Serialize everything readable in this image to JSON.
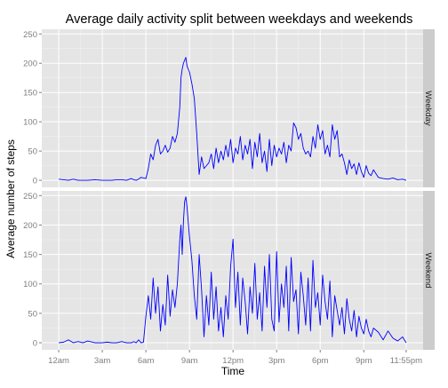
{
  "chart_data": {
    "type": "line",
    "title": "Average daily activity split between weekdays and weekends",
    "xlabel": "Time",
    "ylabel": "Average number of steps",
    "x_ticks": [
      {
        "value": 0,
        "label": "12am"
      },
      {
        "value": 180,
        "label": "3am"
      },
      {
        "value": 360,
        "label": "6am"
      },
      {
        "value": 540,
        "label": "9am"
      },
      {
        "value": 720,
        "label": "12pm"
      },
      {
        "value": 900,
        "label": "3pm"
      },
      {
        "value": 1080,
        "label": "6pm"
      },
      {
        "value": 1260,
        "label": "9pm"
      },
      {
        "value": 1435,
        "label": "11:55pm"
      }
    ],
    "y_ticks": [
      0,
      50,
      100,
      150,
      200,
      250
    ],
    "xlim": [
      -70,
      1505
    ],
    "ylim": [
      -12,
      258
    ],
    "grid": true,
    "line_color": "#0000ff",
    "panel_background": "#e5e5e5",
    "strip_background": "#cccccc",
    "series": [
      {
        "name": "Weekday",
        "x": [
          0,
          20,
          40,
          60,
          80,
          100,
          120,
          150,
          180,
          200,
          220,
          240,
          260,
          280,
          300,
          310,
          320,
          330,
          340,
          350,
          360,
          370,
          380,
          390,
          400,
          410,
          420,
          430,
          440,
          450,
          460,
          470,
          480,
          490,
          500,
          505,
          510,
          515,
          520,
          525,
          530,
          540,
          550,
          560,
          570,
          580,
          590,
          600,
          610,
          620,
          630,
          640,
          650,
          660,
          670,
          680,
          690,
          700,
          710,
          720,
          730,
          740,
          750,
          760,
          770,
          780,
          790,
          800,
          810,
          820,
          830,
          840,
          850,
          860,
          870,
          880,
          890,
          900,
          910,
          920,
          930,
          940,
          950,
          960,
          970,
          980,
          990,
          1000,
          1010,
          1020,
          1030,
          1040,
          1050,
          1060,
          1070,
          1080,
          1090,
          1100,
          1110,
          1120,
          1130,
          1140,
          1150,
          1160,
          1170,
          1180,
          1190,
          1200,
          1210,
          1220,
          1230,
          1240,
          1250,
          1260,
          1270,
          1280,
          1290,
          1300,
          1320,
          1340,
          1360,
          1380,
          1400,
          1420,
          1435
        ],
        "y": [
          2,
          1,
          0,
          2,
          0,
          0,
          0,
          1,
          0,
          0,
          0,
          1,
          1,
          0,
          3,
          1,
          0,
          2,
          5,
          4,
          3,
          20,
          45,
          35,
          60,
          70,
          45,
          50,
          60,
          48,
          55,
          75,
          65,
          80,
          125,
          175,
          190,
          200,
          205,
          210,
          195,
          185,
          165,
          140,
          80,
          10,
          40,
          20,
          25,
          30,
          45,
          20,
          55,
          30,
          50,
          35,
          60,
          40,
          70,
          30,
          55,
          45,
          75,
          35,
          60,
          45,
          70,
          20,
          65,
          40,
          80,
          30,
          50,
          15,
          70,
          25,
          60,
          40,
          55,
          45,
          65,
          30,
          60,
          50,
          98,
          90,
          70,
          80,
          55,
          45,
          50,
          40,
          75,
          55,
          95,
          70,
          85,
          45,
          60,
          40,
          95,
          70,
          85,
          40,
          45,
          30,
          10,
          35,
          20,
          28,
          10,
          30,
          15,
          5,
          25,
          12,
          8,
          18,
          5,
          3,
          2,
          4,
          1,
          2,
          0
        ]
      },
      {
        "name": "Weekend",
        "x": [
          0,
          20,
          40,
          60,
          80,
          100,
          120,
          150,
          180,
          200,
          220,
          240,
          260,
          280,
          300,
          310,
          320,
          330,
          340,
          350,
          360,
          370,
          380,
          390,
          400,
          410,
          420,
          430,
          440,
          450,
          460,
          470,
          480,
          490,
          500,
          505,
          510,
          515,
          520,
          525,
          530,
          540,
          550,
          560,
          570,
          580,
          590,
          600,
          610,
          620,
          630,
          640,
          650,
          660,
          670,
          680,
          690,
          700,
          710,
          720,
          730,
          740,
          750,
          760,
          770,
          780,
          790,
          800,
          810,
          820,
          830,
          840,
          850,
          860,
          870,
          880,
          890,
          900,
          910,
          920,
          930,
          940,
          950,
          960,
          970,
          980,
          990,
          1000,
          1010,
          1020,
          1030,
          1040,
          1050,
          1060,
          1070,
          1080,
          1090,
          1100,
          1110,
          1120,
          1130,
          1140,
          1150,
          1160,
          1170,
          1180,
          1190,
          1200,
          1210,
          1220,
          1230,
          1240,
          1250,
          1260,
          1270,
          1280,
          1290,
          1300,
          1320,
          1340,
          1360,
          1380,
          1400,
          1420,
          1435
        ],
        "y": [
          0,
          1,
          5,
          0,
          2,
          0,
          3,
          0,
          0,
          1,
          0,
          0,
          2,
          0,
          0,
          2,
          0,
          5,
          0,
          1,
          45,
          80,
          40,
          110,
          50,
          95,
          20,
          65,
          30,
          115,
          45,
          90,
          60,
          100,
          175,
          200,
          150,
          205,
          240,
          248,
          230,
          180,
          140,
          80,
          40,
          150,
          90,
          10,
          80,
          30,
          120,
          40,
          95,
          20,
          60,
          10,
          80,
          40,
          130,
          176,
          60,
          120,
          30,
          110,
          70,
          15,
          95,
          50,
          135,
          40,
          85,
          20,
          130,
          60,
          150,
          40,
          20,
          155,
          35,
          100,
          60,
          130,
          20,
          145,
          70,
          90,
          15,
          120,
          80,
          30,
          110,
          20,
          140,
          60,
          85,
          30,
          115,
          70,
          40,
          105,
          10,
          80,
          55,
          30,
          60,
          15,
          75,
          40,
          20,
          55,
          10,
          45,
          25,
          15,
          40,
          20,
          10,
          25,
          18,
          5,
          20,
          8,
          3,
          10,
          0
        ]
      }
    ]
  }
}
